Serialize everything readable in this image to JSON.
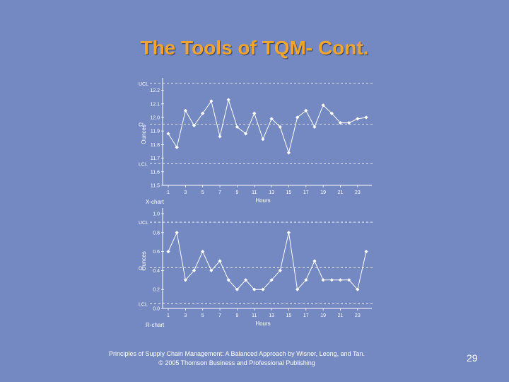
{
  "slide": {
    "title": "The Tools of TQM- Cont.",
    "footer_line1": "Principles of Supply Chain Management: A Balanced Approach by Wisner, Leong, and Tan.",
    "footer_line2": "© 2005 Thomson Business and Professional Publishing",
    "page_number": "29"
  },
  "colors": {
    "background": "#7489c2",
    "title": "#f2a52e",
    "marks": "#ffffff"
  },
  "chart_data": [
    {
      "type": "line",
      "chart_label": "X-chart",
      "xlabel": "Hours",
      "ylabel": "Ounces",
      "x": [
        1,
        2,
        3,
        4,
        5,
        6,
        7,
        8,
        9,
        10,
        11,
        12,
        13,
        14,
        15,
        16,
        17,
        18,
        19,
        20,
        21,
        22,
        23,
        24
      ],
      "xticks": [
        "1",
        "3",
        "5",
        "7",
        "9",
        "11",
        "13",
        "15",
        "17",
        "19",
        "21",
        "23"
      ],
      "yticks": [
        "11.5",
        "11.6",
        "11.7",
        "11.8",
        "11.9",
        "12.0",
        "12.1",
        "12.2"
      ],
      "ylim": [
        11.5,
        12.25
      ],
      "control_lines": {
        "UCL": 12.25,
        "CL": 11.95,
        "LCL": 11.66
      },
      "control_labels": [
        "UCL",
        "CL",
        "LCL"
      ],
      "values": [
        11.88,
        11.78,
        12.05,
        11.94,
        12.03,
        12.12,
        11.86,
        12.13,
        11.93,
        11.88,
        12.03,
        11.84,
        11.99,
        11.93,
        11.74,
        12.0,
        12.05,
        11.93,
        12.09,
        12.03,
        11.96,
        11.96,
        11.99,
        12.0
      ],
      "grid": false
    },
    {
      "type": "line",
      "chart_label": "R-chart",
      "xlabel": "Hours",
      "ylabel": "Ounces",
      "x": [
        1,
        2,
        3,
        4,
        5,
        6,
        7,
        8,
        9,
        10,
        11,
        12,
        13,
        14,
        15,
        16,
        17,
        18,
        19,
        20,
        21,
        22,
        23,
        24
      ],
      "xticks": [
        "1",
        "3",
        "5",
        "7",
        "9",
        "11",
        "13",
        "15",
        "17",
        "19",
        "21",
        "23"
      ],
      "yticks": [
        "0.0",
        "0.2",
        "0.4",
        "0.6",
        "0.8",
        "1.0"
      ],
      "ylim": [
        0.0,
        1.0
      ],
      "control_lines": {
        "UCL": 0.91,
        "CL": 0.43,
        "LCL": 0.05
      },
      "control_labels": [
        "UCL",
        "CL",
        "LCL"
      ],
      "values": [
        0.6,
        0.8,
        0.3,
        0.4,
        0.6,
        0.4,
        0.5,
        0.3,
        0.2,
        0.3,
        0.2,
        0.2,
        0.3,
        0.4,
        0.8,
        0.2,
        0.3,
        0.5,
        0.3,
        0.3,
        0.3,
        0.3,
        0.2,
        0.6
      ],
      "grid": false
    }
  ]
}
